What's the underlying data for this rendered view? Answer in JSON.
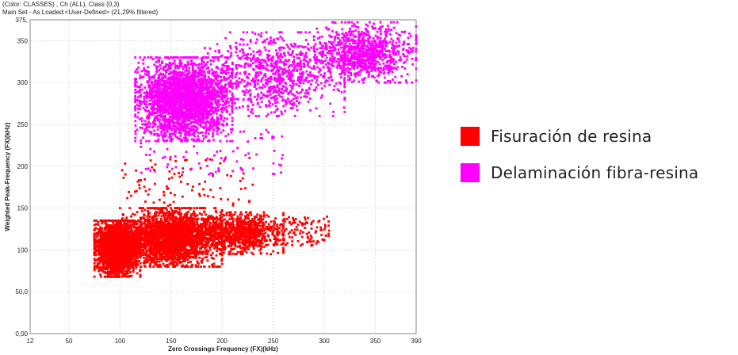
{
  "header": {
    "line1": "(Color: CLASSES) , Ch (ALL), Class (0,3)",
    "line2": "Main Set - As Loaded:<User-Defined> (21,29% filtered)"
  },
  "legend": {
    "items": [
      {
        "label": "Fisuración de resina",
        "color": "#ff0000"
      },
      {
        "label": "Delaminación fibra-resina",
        "color": "#ff00ff"
      }
    ]
  },
  "chart_data": {
    "type": "scatter",
    "xlabel": "Zero Crossings Frequency (FX)(kHz)",
    "ylabel": "Weighted Peak-Frequency (FX)(kHz)",
    "xlim": [
      12,
      390
    ],
    "ylim": [
      0,
      375
    ],
    "x_ticks": [
      "12",
      "50",
      "100",
      "150",
      "200",
      "250",
      "300",
      "350",
      "390"
    ],
    "y_ticks": [
      "0,00",
      "50,0",
      "100",
      "150",
      "200",
      "250",
      "300",
      "350",
      "375,"
    ],
    "grid": true,
    "legend_position": "right",
    "series": [
      {
        "name": "Fisuración de resina",
        "color": "#ff0000",
        "clusters": [
          {
            "x": [
              75,
              120
            ],
            "y": [
              68,
              135
            ],
            "density": "high"
          },
          {
            "x": [
              100,
              200
            ],
            "y": [
              80,
              150
            ],
            "density": "high"
          },
          {
            "x": [
              180,
              260
            ],
            "y": [
              95,
              145
            ],
            "density": "medium"
          },
          {
            "x": [
              250,
              305
            ],
            "y": [
              105,
              140
            ],
            "density": "low"
          },
          {
            "x": [
              100,
              230
            ],
            "y": [
              150,
              210
            ],
            "density": "sparse"
          }
        ]
      },
      {
        "name": "Delaminación fibra-resina",
        "color": "#ff00ff",
        "clusters": [
          {
            "x": [
              115,
              210
            ],
            "y": [
              230,
              330
            ],
            "density": "high"
          },
          {
            "x": [
              180,
              320
            ],
            "y": [
              260,
              360
            ],
            "density": "medium"
          },
          {
            "x": [
              290,
              390
            ],
            "y": [
              300,
              372
            ],
            "density": "medium"
          },
          {
            "x": [
              120,
              260
            ],
            "y": [
              190,
              245
            ],
            "density": "sparse"
          }
        ]
      }
    ]
  }
}
